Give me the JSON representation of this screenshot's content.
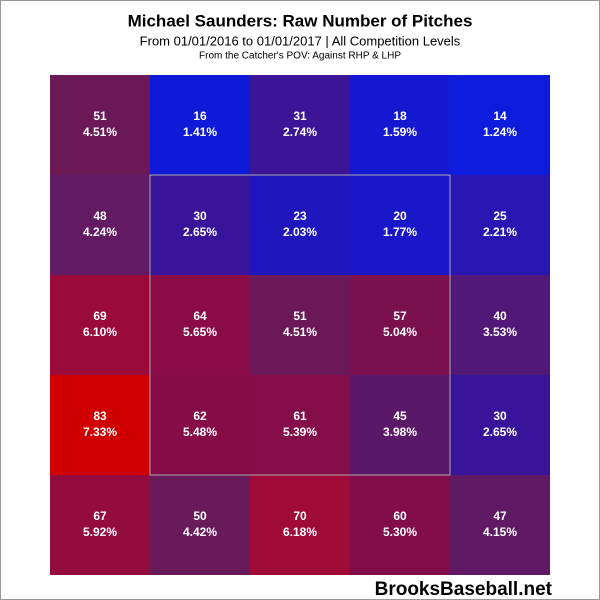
{
  "chart_data": {
    "type": "heatmap",
    "title": "Michael Saunders: Raw Number of Pitches",
    "subtitle": "From 01/01/2016 to 01/01/2017 | All Competition Levels",
    "note": "From the Catcher's POV:  Against RHP & LHP",
    "watermark": "BrooksBaseball.net",
    "values": [
      [
        51,
        16,
        31,
        18,
        14
      ],
      [
        48,
        30,
        23,
        20,
        25
      ],
      [
        69,
        64,
        51,
        57,
        40
      ],
      [
        83,
        62,
        61,
        45,
        30
      ],
      [
        67,
        50,
        70,
        60,
        47
      ]
    ],
    "percents": [
      [
        4.51,
        1.41,
        2.74,
        1.59,
        1.24
      ],
      [
        4.24,
        2.65,
        2.03,
        1.77,
        2.21
      ],
      [
        6.1,
        5.65,
        4.51,
        5.04,
        3.53
      ],
      [
        7.33,
        5.48,
        5.39,
        3.98,
        2.65
      ],
      [
        5.92,
        4.42,
        6.18,
        5.3,
        4.15
      ]
    ],
    "percent_labels": [
      [
        "4.51%",
        "1.41%",
        "2.74%",
        "1.59%",
        "1.24%"
      ],
      [
        "4.24%",
        "2.65%",
        "2.03%",
        "1.77%",
        "2.21%"
      ],
      [
        "6.10%",
        "5.65%",
        "4.51%",
        "5.04%",
        "3.53%"
      ],
      [
        "7.33%",
        "5.48%",
        "5.39%",
        "3.98%",
        "2.65%"
      ],
      [
        "5.92%",
        "4.42%",
        "6.18%",
        "5.30%",
        "4.15%"
      ]
    ],
    "colors": [
      [
        "#6b1857",
        "#0f19d8",
        "#3c1496",
        "#1418d0",
        "#0c1bdc"
      ],
      [
        "#621a62",
        "#38149b",
        "#2016be",
        "#1a17c8",
        "#2815b2"
      ],
      [
        "#9a0a3a",
        "#8a0c46",
        "#6b1857",
        "#7a104e",
        "#521878"
      ],
      [
        "#d00000",
        "#860c48",
        "#840d4a",
        "#5c1868",
        "#38149b"
      ],
      [
        "#940b3e",
        "#681a5a",
        "#a00a36",
        "#820d4a",
        "#601a64"
      ]
    ]
  }
}
